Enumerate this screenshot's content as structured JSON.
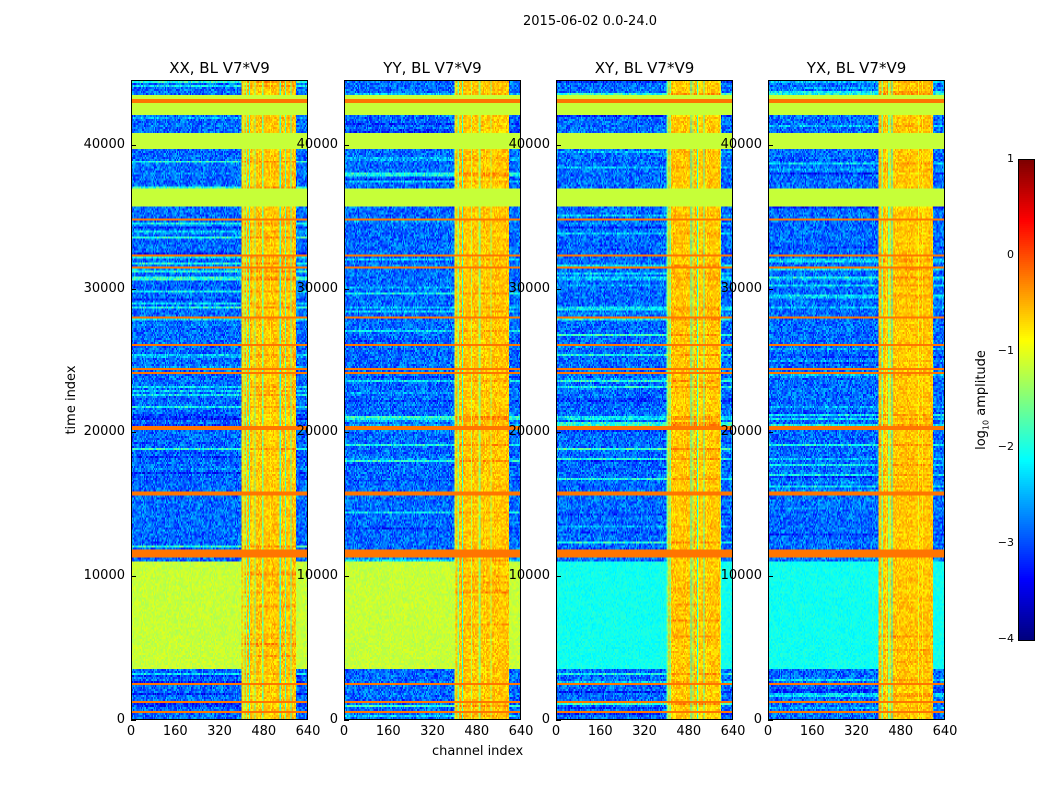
{
  "figure": {
    "suptitle": "2015-06-02 0.0-24.0",
    "xlabel": "channel index",
    "ylabel": "time index"
  },
  "colorbar": {
    "label_prefix": "log",
    "label_sub": "10",
    "label_suffix": " amplitude",
    "ticks": [
      "1",
      "0",
      "−1",
      "−2",
      "−3",
      "−4"
    ],
    "tick_values": [
      1,
      0,
      -1,
      -2,
      -3,
      -4
    ],
    "range": [
      -4,
      1
    ],
    "colormap": "jet"
  },
  "chart_data": {
    "type": "heatmap",
    "xlim": [
      0,
      640
    ],
    "ylim": [
      0,
      44500
    ],
    "xticks": [
      "0",
      "160",
      "320",
      "480",
      "640"
    ],
    "xtick_values": [
      0,
      160,
      320,
      480,
      640
    ],
    "yticks": [
      "0",
      "10000",
      "20000",
      "30000",
      "40000"
    ],
    "ytick_values": [
      0,
      10000,
      20000,
      30000,
      40000
    ],
    "value_label": "log10 amplitude",
    "panels": [
      {
        "title": "XX, BL V7*V9",
        "background": -3.0,
        "low_region": [
          3500,
          11000,
          -1.3
        ]
      },
      {
        "title": "YY, BL V7*V9",
        "background": -3.0,
        "low_region": [
          3500,
          11000,
          -1.3
        ]
      },
      {
        "title": "XY, BL V7*V9",
        "background": -3.0,
        "low_region": [
          3500,
          11000,
          -2.2
        ]
      },
      {
        "title": "YX, BL V7*V9",
        "background": -3.0,
        "low_region": [
          3500,
          11000,
          -2.2
        ]
      }
    ],
    "bright_channels": [
      400,
      600,
      -0.6
    ],
    "flat_bands": [
      [
        35700,
        37000,
        -1.15
      ],
      [
        39800,
        40900,
        -1.15
      ],
      [
        42200,
        43500,
        -1.15
      ]
    ],
    "hot_lines": [
      500,
      1200,
      2400,
      11400,
      11700,
      15700,
      20300,
      24100,
      24400,
      26100,
      28000,
      31500,
      32300,
      34800,
      43100
    ]
  }
}
